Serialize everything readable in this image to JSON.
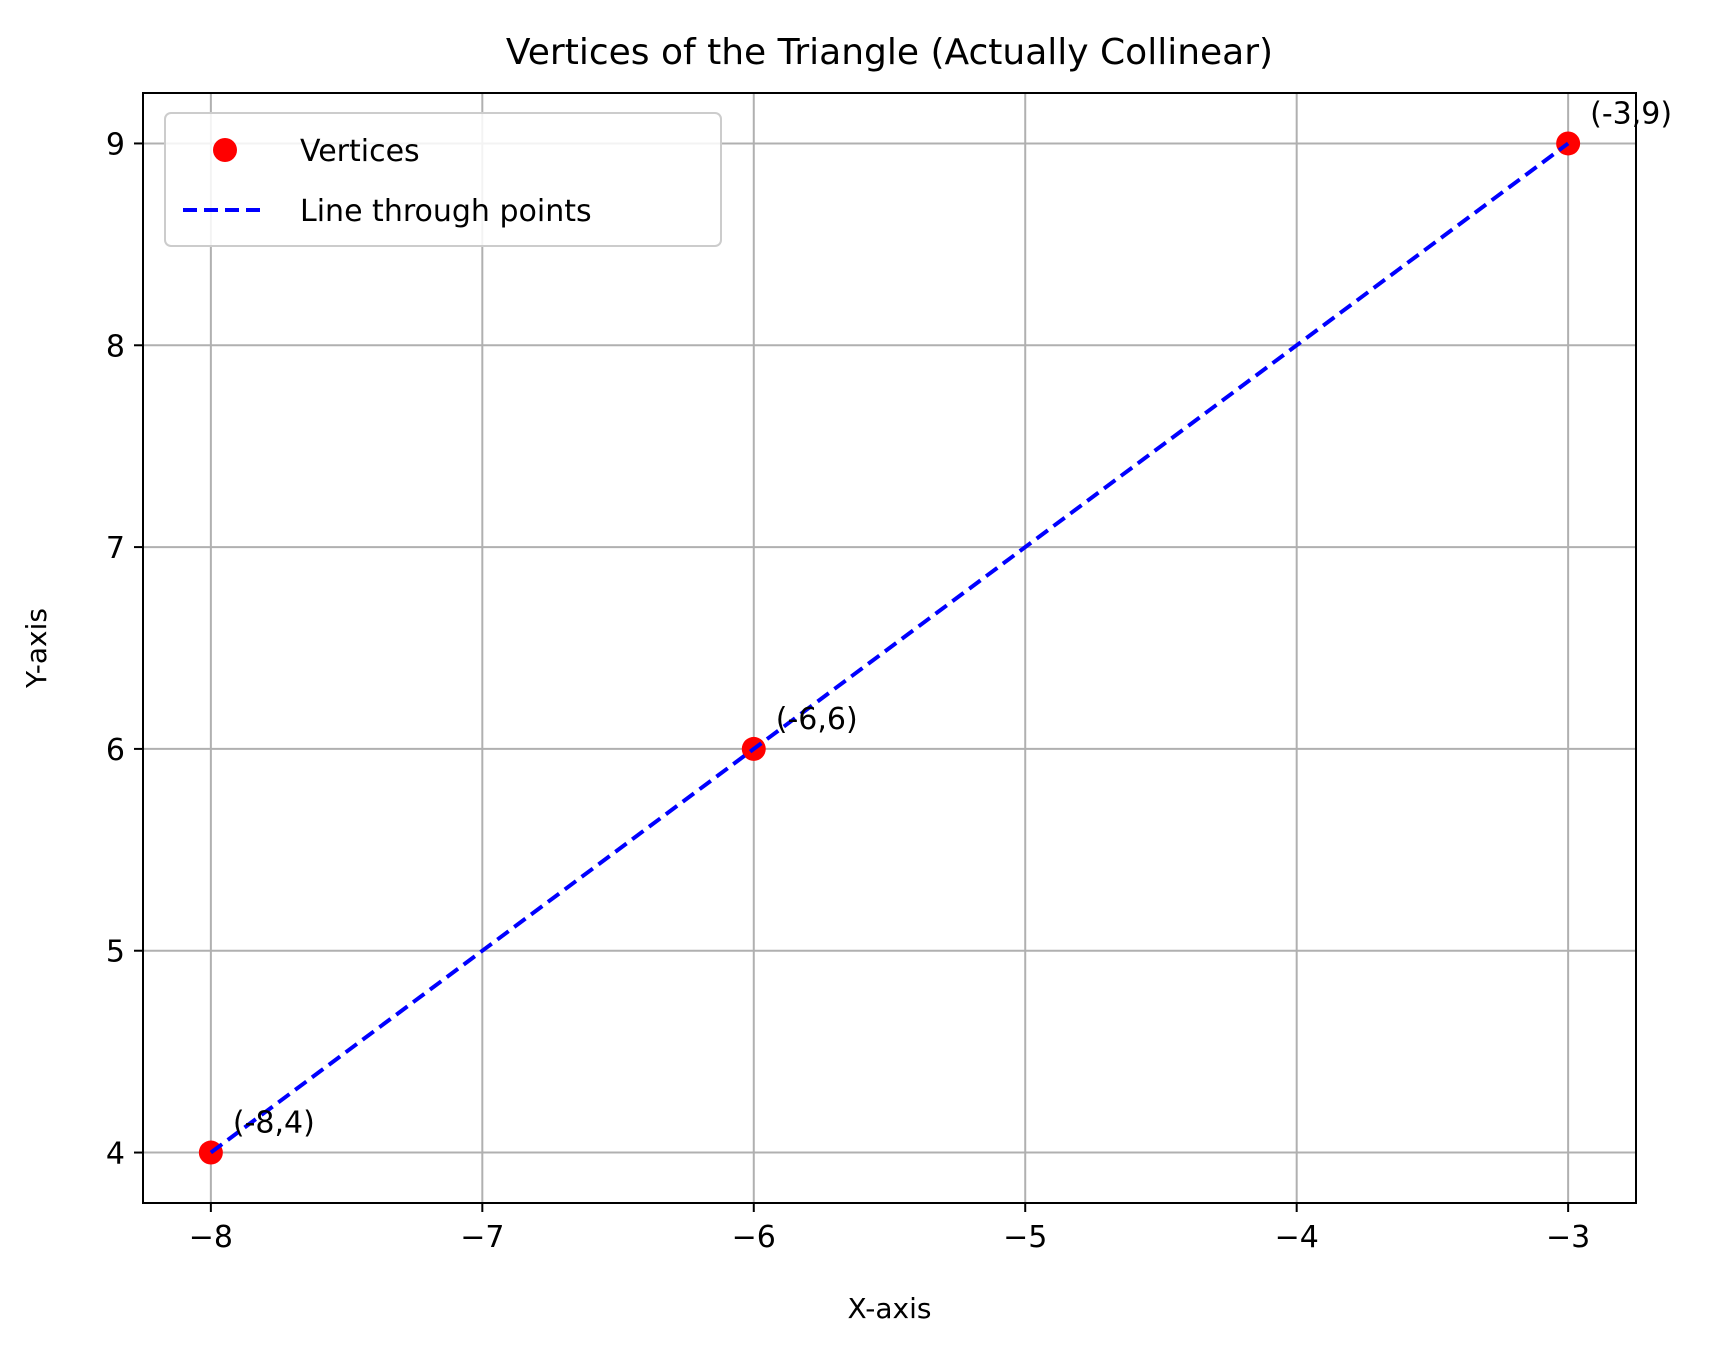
{
  "chart_data": {
    "type": "scatter",
    "title": "Vertices of the Triangle (Actually Collinear)",
    "xlabel": "X-axis",
    "ylabel": "Y-axis",
    "xlim": [
      -8.25,
      -2.75
    ],
    "ylim": [
      3.75,
      9.25
    ],
    "xticks": [
      -8,
      -7,
      -6,
      -5,
      -4,
      -3
    ],
    "yticks": [
      4,
      5,
      6,
      7,
      8,
      9
    ],
    "xtick_labels": [
      "−8",
      "−7",
      "−6",
      "−5",
      "−4",
      "−3"
    ],
    "ytick_labels": [
      "4",
      "5",
      "6",
      "7",
      "8",
      "9"
    ],
    "grid": true,
    "legend_position": "top-left",
    "series": [
      {
        "name": "Vertices",
        "kind": "scatter",
        "color": "#ff0000",
        "x": [
          -8,
          -6,
          -3
        ],
        "y": [
          4,
          6,
          9
        ]
      },
      {
        "name": "Line through points",
        "kind": "line",
        "style": "dashed",
        "color": "#0000ff",
        "x": [
          -8,
          -6,
          -3
        ],
        "y": [
          4,
          6,
          9
        ]
      }
    ],
    "annotations": [
      {
        "text": "(-8,4)",
        "x": -8,
        "y": 4
      },
      {
        "text": "(-6,6)",
        "x": -6,
        "y": 6
      },
      {
        "text": "(-3,9)",
        "x": -3,
        "y": 9
      }
    ]
  }
}
